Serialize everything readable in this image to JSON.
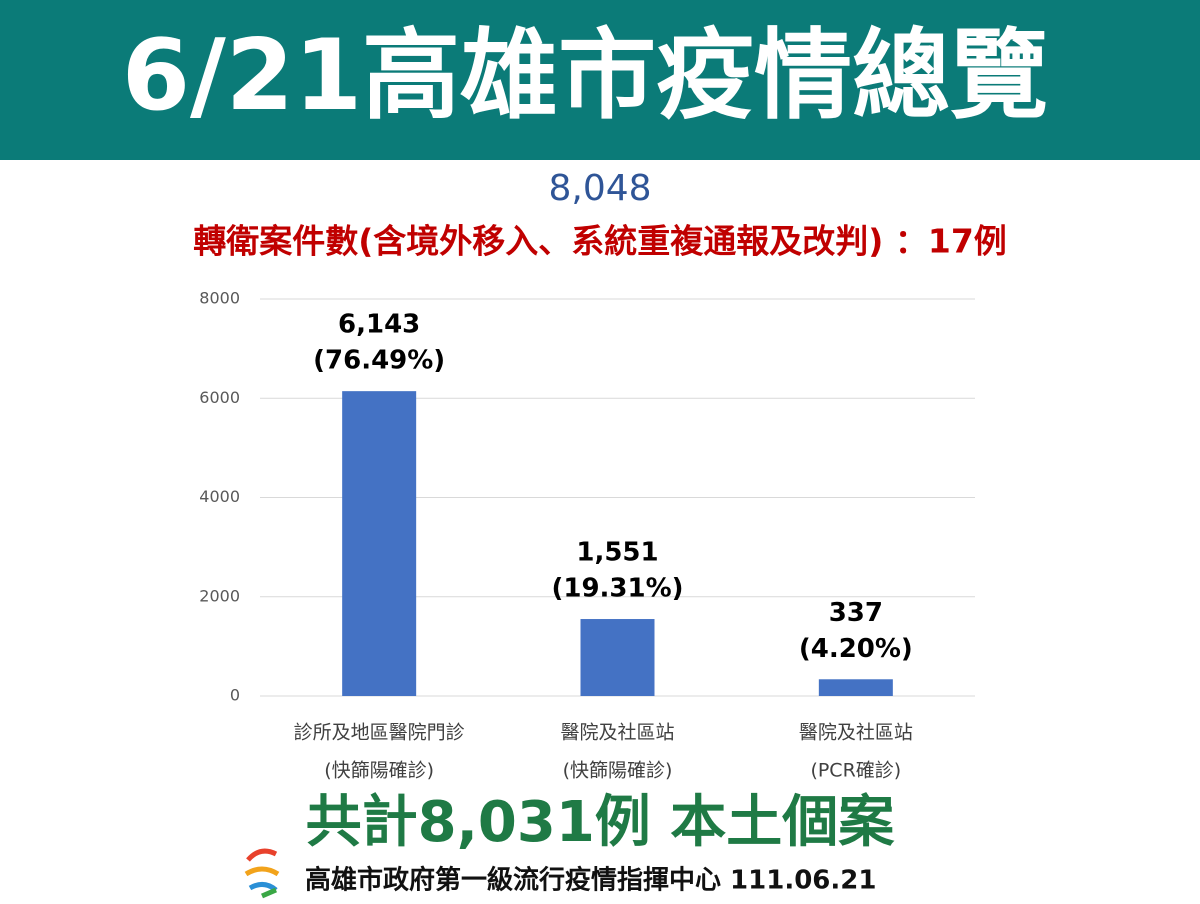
{
  "header": {
    "title": "6/21高雄市疫情總覽"
  },
  "total": "8,048",
  "note": "轉衛案件數(含境外移入、系統重複通報及改判) ：17例",
  "chart_data": {
    "type": "bar",
    "categories": [
      [
        "診所及地區醫院門診",
        "(快篩陽確診)"
      ],
      [
        "醫院及社區站",
        "(快篩陽確診)"
      ],
      [
        "醫院及社區站",
        "(PCR確診)"
      ]
    ],
    "values": [
      6143,
      1551,
      337
    ],
    "value_labels": [
      "6,143",
      "1,551",
      "337"
    ],
    "shares": [
      76.49,
      19.31,
      4.2
    ],
    "share_labels": [
      "(76.49%)",
      "(19.31%)",
      "(4.20%)"
    ],
    "color": "#4472c4",
    "ylim": [
      0,
      8000
    ],
    "yticks": [
      0,
      2000,
      4000,
      6000,
      8000
    ],
    "grid": true
  },
  "footer": {
    "summary": "共計8,031例 本土個案",
    "source": "高雄市政府第一級流行疫情指揮中心 111.06.21"
  }
}
